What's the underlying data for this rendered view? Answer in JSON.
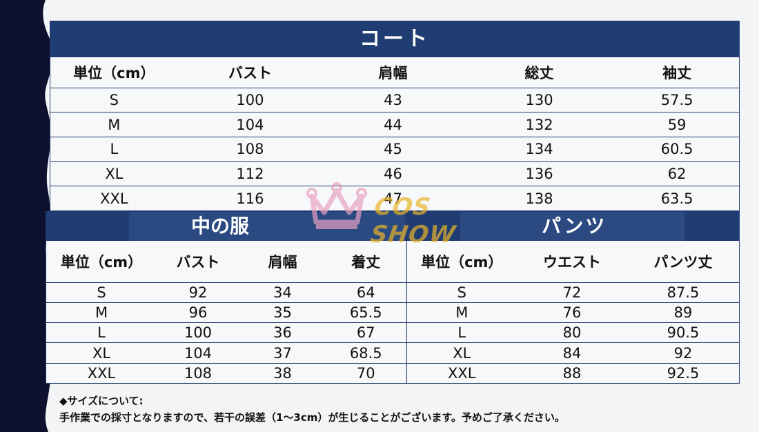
{
  "coat": {
    "title": "コート",
    "headers": [
      "単位（cm）",
      "バスト",
      "肩幅",
      "総丈",
      "袖丈"
    ],
    "rows": [
      [
        "S",
        "100",
        "43",
        "130",
        "57.5"
      ],
      [
        "M",
        "104",
        "44",
        "132",
        "59"
      ],
      [
        "L",
        "108",
        "45",
        "134",
        "60.5"
      ],
      [
        "XL",
        "112",
        "46",
        "136",
        "62"
      ],
      [
        "XXL",
        "116",
        "47",
        "138",
        "63.5"
      ]
    ]
  },
  "inner": {
    "title": "中の服",
    "headers": [
      "単位（cm）",
      "バスト",
      "肩幅",
      "着丈"
    ],
    "rows": [
      [
        "S",
        "92",
        "34",
        "64"
      ],
      [
        "M",
        "96",
        "35",
        "65.5"
      ],
      [
        "L",
        "100",
        "36",
        "67"
      ],
      [
        "XL",
        "104",
        "37",
        "68.5"
      ],
      [
        "XXL",
        "108",
        "38",
        "70"
      ]
    ]
  },
  "pants": {
    "title": "パンツ",
    "headers": [
      "単位（cm）",
      "ウエスト",
      "パンツ丈"
    ],
    "rows": [
      [
        "S",
        "72",
        "87.5"
      ],
      [
        "M",
        "76",
        "89"
      ],
      [
        "L",
        "80",
        "90.5"
      ],
      [
        "XL",
        "84",
        "92"
      ],
      [
        "XXL",
        "88",
        "92.5"
      ]
    ]
  },
  "notes": {
    "line1": "◆サイズについて:",
    "line2": "手作業での採寸となりますので、若干の誤差（1～3cm）が生じることがございます。予めご了承ください。"
  },
  "watermark": {
    "text": "COS SHOW",
    "icon": "crown-icon"
  },
  "colors": {
    "header": "#1f3d72",
    "border": "#1f3a6e",
    "side": "#0e1030"
  }
}
